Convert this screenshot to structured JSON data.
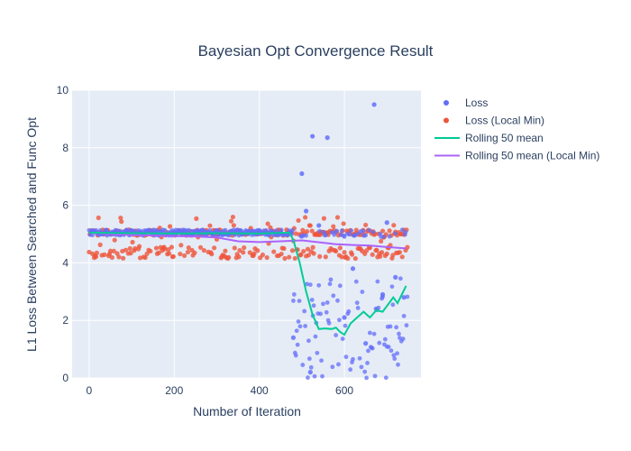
{
  "chart_data": {
    "type": "scatter",
    "title": "Bayesian Opt Convergence Result",
    "xlabel": "Number of Iteration",
    "ylabel": "L1 Loss Between Searched and Func Opt",
    "xlim": [
      -40,
      780
    ],
    "ylim": [
      0,
      10
    ],
    "x_ticks": [
      0,
      200,
      400,
      600
    ],
    "y_ticks": [
      0,
      2,
      4,
      6,
      8,
      10
    ],
    "grid": true,
    "legend_position": "right",
    "colors": {
      "plot_bg": "#e5ecf6",
      "grid": "#ffffff",
      "loss": "#636efa",
      "loss_local": "#ef553b",
      "rolling": "#00cc96",
      "rolling_local": "#ab63fa"
    },
    "series": [
      {
        "name": "Loss",
        "mode": "markers",
        "description_values": "about 5.0 for iterations 0-480; widely scattered 0-6 for iterations 480-750 with outliers",
        "points": [
          [
            500,
            7.1
          ],
          [
            525,
            8.4
          ],
          [
            560,
            8.35
          ],
          [
            670,
            9.5
          ],
          [
            510,
            5.8
          ],
          [
            540,
            5.3
          ],
          [
            700,
            5.4
          ],
          [
            620,
            3.8
          ],
          [
            690,
            2.9
          ],
          [
            720,
            3.5
          ],
          [
            480,
            1.4
          ],
          [
            520,
            0.2
          ],
          [
            600,
            2.1
          ],
          [
            650,
            1.2
          ],
          [
            740,
            2.8
          ]
        ]
      },
      {
        "name": "Loss (Local Min)",
        "mode": "markers",
        "description_values": "scattered between about 4.1 and 5.7 across all iterations 0-750"
      },
      {
        "name": "Rolling 50 mean",
        "mode": "lines",
        "points": [
          [
            0,
            5.05
          ],
          [
            100,
            5.03
          ],
          [
            200,
            5.02
          ],
          [
            300,
            5.03
          ],
          [
            400,
            5.02
          ],
          [
            470,
            5.05
          ],
          [
            480,
            4.8
          ],
          [
            495,
            4.0
          ],
          [
            510,
            3.0
          ],
          [
            525,
            2.2
          ],
          [
            540,
            1.7
          ],
          [
            555,
            1.72
          ],
          [
            570,
            1.7
          ],
          [
            580,
            1.75
          ],
          [
            590,
            1.6
          ],
          [
            600,
            1.5
          ],
          [
            615,
            1.9
          ],
          [
            630,
            2.1
          ],
          [
            645,
            2.3
          ],
          [
            660,
            2.1
          ],
          [
            675,
            2.35
          ],
          [
            690,
            2.3
          ],
          [
            705,
            2.6
          ],
          [
            715,
            2.8
          ],
          [
            725,
            2.6
          ],
          [
            735,
            2.9
          ],
          [
            745,
            3.2
          ]
        ]
      },
      {
        "name": "Rolling 50 mean (Local Min)",
        "mode": "lines",
        "points": [
          [
            0,
            5.05
          ],
          [
            50,
            5.0
          ],
          [
            100,
            4.97
          ],
          [
            150,
            4.95
          ],
          [
            200,
            4.93
          ],
          [
            250,
            4.92
          ],
          [
            300,
            4.88
          ],
          [
            350,
            4.75
          ],
          [
            400,
            4.72
          ],
          [
            450,
            4.75
          ],
          [
            500,
            4.78
          ],
          [
            550,
            4.7
          ],
          [
            580,
            4.65
          ],
          [
            620,
            4.62
          ],
          [
            660,
            4.6
          ],
          [
            700,
            4.55
          ],
          [
            745,
            4.5
          ]
        ]
      }
    ]
  }
}
